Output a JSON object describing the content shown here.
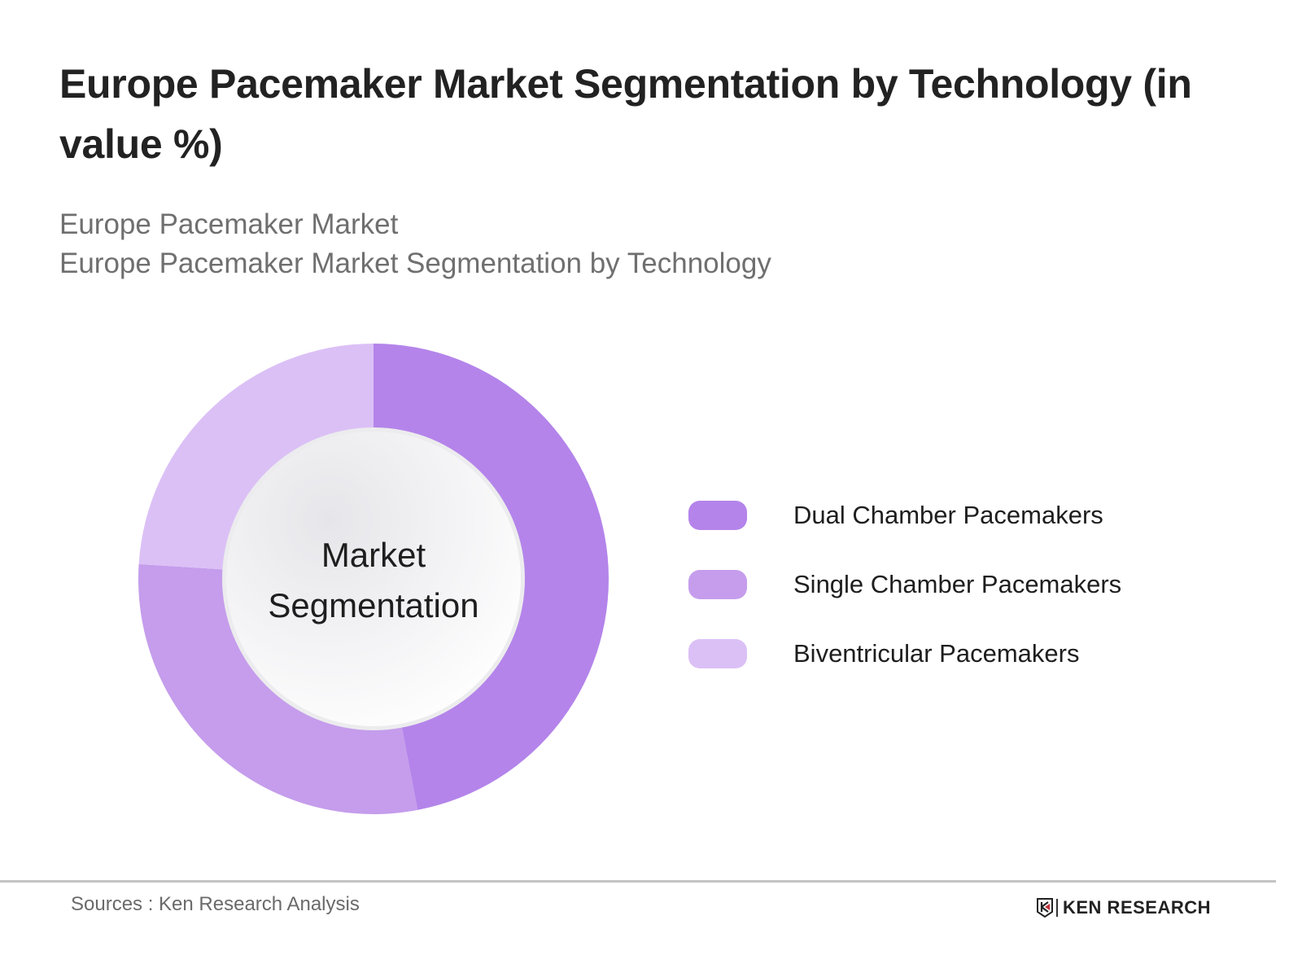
{
  "header": {
    "title": "Europe Pacemaker Market Segmentation by Technology (in value %)",
    "subtitle_line1": "Europe Pacemaker Market",
    "subtitle_line2": "Europe Pacemaker Market Segmentation by Technology"
  },
  "chart": {
    "center_line1": "Market",
    "center_line2": "Segmentation"
  },
  "legend": [
    {
      "label": "Dual Chamber Pacemakers",
      "color": "#b484ea"
    },
    {
      "label": "Single Chamber Pacemakers",
      "color": "#c59dec"
    },
    {
      "label": "Biventricular Pacemakers",
      "color": "#dbc0f6"
    }
  ],
  "footer": {
    "source": "Sources : Ken Research Analysis",
    "logo_text": "KEN RESEARCH"
  },
  "chart_data": {
    "type": "pie",
    "subtype": "donut",
    "title": "Europe Pacemaker Market Segmentation by Technology (in value %)",
    "subtitle": "Europe Pacemaker Market / Europe Pacemaker Market Segmentation by Technology",
    "center_text": "Market Segmentation",
    "categories": [
      "Dual Chamber Pacemakers",
      "Single Chamber Pacemakers",
      "Biventricular Pacemakers"
    ],
    "values": [
      47,
      29,
      24
    ],
    "colors": [
      "#b484ea",
      "#c59dec",
      "#dbc0f6"
    ],
    "unit": "%",
    "legend_position": "right",
    "data_labels_shown": false,
    "source": "Sources : Ken Research Analysis"
  }
}
